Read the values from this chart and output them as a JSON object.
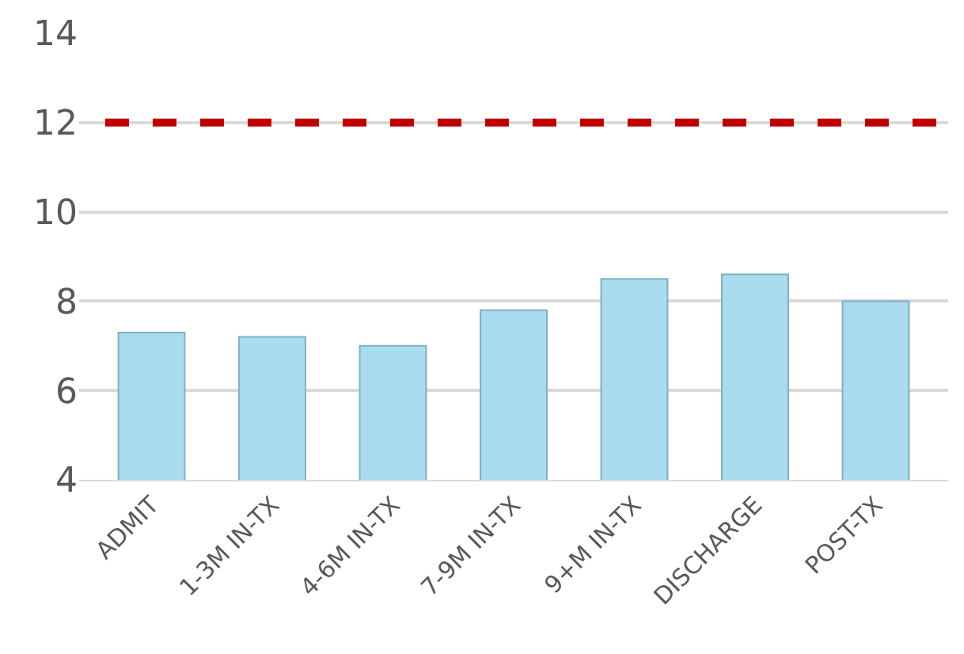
{
  "chart_data": {
    "type": "bar",
    "categories": [
      "ADMIT",
      "1-3M IN-TX",
      "4-6M IN-TX",
      "7-9M IN-TX",
      "9+M IN-TX",
      "DISCHARGE",
      "POST-TX"
    ],
    "values": [
      7.3,
      7.2,
      7.0,
      7.8,
      8.5,
      8.6,
      8.0
    ],
    "color": "#a8dcee",
    "ylim": [
      4,
      14
    ],
    "yticks": [
      4,
      6,
      8,
      10,
      12,
      14
    ],
    "grid": "y",
    "ref_lines": [
      {
        "axis": "y",
        "value": 12,
        "color": "#c00000",
        "line_style": "dashed"
      }
    ]
  }
}
